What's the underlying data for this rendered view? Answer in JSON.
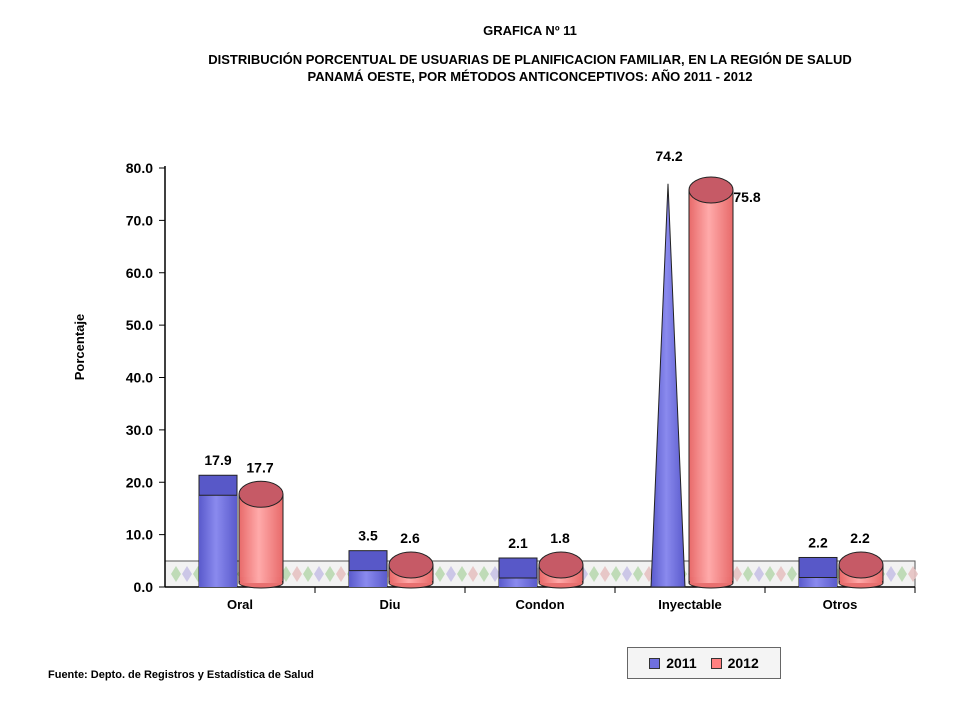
{
  "header": {
    "title": "GRAFICA Nº 11",
    "subtitle_line1": "DISTRIBUCIÓN PORCENTUAL DE USUARIAS DE PLANIFICACION FAMILIAR, EN LA REGIÓN DE SALUD",
    "subtitle_line2": "PANAMÁ OESTE, POR MÉTODOS ANTICONCEPTIVOS: AÑO 2011 - 2012"
  },
  "chart_data": {
    "type": "bar",
    "title": "",
    "ylabel": "Porcentaje",
    "xlabel": "",
    "ylim": [
      0,
      80
    ],
    "ytick_labels": [
      "0.0",
      "10.0",
      "20.0",
      "30.0",
      "40.0",
      "50.0",
      "60.0",
      "70.0",
      "80.0"
    ],
    "categories": [
      "Oral",
      "Diu",
      "Condon",
      "Inyectable",
      "Otros"
    ],
    "series": [
      {
        "name": "2011",
        "color": "#7070e0",
        "values": [
          17.9,
          3.5,
          2.1,
          74.2,
          2.2
        ],
        "labels": [
          "17.9",
          "3.5",
          "2.1",
          "74.2",
          "2.2"
        ]
      },
      {
        "name": "2012",
        "color": "#ff8080",
        "values": [
          17.7,
          2.6,
          1.8,
          75.8,
          2.2
        ],
        "labels": [
          "17.7",
          "2.6",
          "1.8",
          "75.8",
          "2.2"
        ]
      }
    ],
    "legend_position": "bottom-right",
    "grid": false
  },
  "footer": {
    "source": "Fuente: Depto. de Registros  y Estadística de Salud"
  }
}
